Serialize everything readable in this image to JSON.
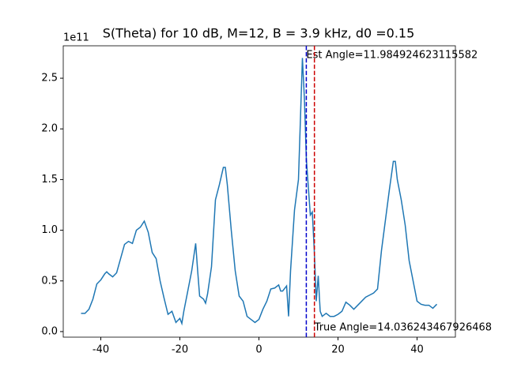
{
  "chart_data": {
    "type": "line",
    "title": "S(Theta) for 10 dB, M=12, B = 3.9 kHz, d0 =0.15",
    "y_offset_label": "1e11",
    "x": [
      -45,
      -44,
      -43,
      -42,
      -41,
      -40,
      -39,
      -38.5,
      -38,
      -37,
      -36,
      -35,
      -34,
      -33,
      -32,
      -31,
      -30,
      -29,
      -28,
      -27,
      -26,
      -25,
      -24,
      -23,
      -22,
      -21,
      -20,
      -19.5,
      -19,
      -18,
      -17,
      -16,
      -15.5,
      -15,
      -14,
      -13.5,
      -13,
      -12,
      -11,
      -10,
      -9,
      -8.5,
      -8,
      -7,
      -6,
      -5,
      -4,
      -3,
      -2,
      -1,
      0,
      1,
      2,
      3,
      4,
      5,
      5.5,
      6,
      7,
      7.5,
      8,
      9,
      10,
      11,
      11.5,
      12,
      13,
      13.5,
      14,
      14.5,
      15,
      15.5,
      16,
      17,
      18,
      19,
      20,
      21,
      22,
      23,
      24,
      25,
      26,
      27,
      28,
      29,
      30,
      31,
      32,
      33,
      34,
      34.5,
      35,
      36,
      37,
      38,
      39,
      40,
      41,
      42,
      43,
      44,
      45
    ],
    "series": [
      {
        "color": "#1f77b4",
        "values": [
          0.18,
          0.18,
          0.22,
          0.32,
          0.47,
          0.51,
          0.57,
          0.59,
          0.57,
          0.54,
          0.58,
          0.72,
          0.86,
          0.89,
          0.87,
          1.0,
          1.03,
          1.09,
          0.98,
          0.78,
          0.72,
          0.5,
          0.33,
          0.17,
          0.2,
          0.09,
          0.13,
          0.08,
          0.2,
          0.4,
          0.6,
          0.87,
          0.6,
          0.35,
          0.32,
          0.28,
          0.37,
          0.64,
          1.3,
          1.45,
          1.62,
          1.62,
          1.45,
          1.0,
          0.6,
          0.35,
          0.3,
          0.15,
          0.12,
          0.09,
          0.12,
          0.22,
          0.3,
          0.42,
          0.43,
          0.46,
          0.4,
          0.4,
          0.45,
          0.15,
          0.6,
          1.2,
          1.5,
          2.7,
          2.3,
          1.7,
          1.15,
          1.18,
          0.8,
          0.3,
          0.55,
          0.2,
          0.15,
          0.18,
          0.15,
          0.15,
          0.17,
          0.2,
          0.29,
          0.26,
          0.22,
          0.26,
          0.3,
          0.34,
          0.36,
          0.38,
          0.42,
          0.8,
          1.1,
          1.4,
          1.68,
          1.68,
          1.5,
          1.3,
          1.05,
          0.7,
          0.5,
          0.3,
          0.27,
          0.26,
          0.26,
          0.23,
          0.27
        ]
      }
    ],
    "vlines": [
      {
        "x": 11.984924623115582,
        "color": "#0000cc",
        "label": "Est Angle=11.984924623115582"
      },
      {
        "x": 14.036243467926468,
        "color": "#cc0000",
        "label": "True Angle=14.036243467926468"
      }
    ],
    "xlim": [
      -49.5,
      49.7
    ],
    "ylim": [
      -0.055,
      2.82
    ],
    "xticks": [
      -40,
      -20,
      0,
      20,
      40
    ],
    "yticks": [
      {
        "value": 0,
        "label": "0.0"
      },
      {
        "value": 0.5,
        "label": "0.5"
      },
      {
        "value": 1,
        "label": "1.0"
      },
      {
        "value": 1.5,
        "label": "1.5"
      },
      {
        "value": 2,
        "label": "2.0"
      },
      {
        "value": 2.5,
        "label": "2.5"
      }
    ]
  }
}
